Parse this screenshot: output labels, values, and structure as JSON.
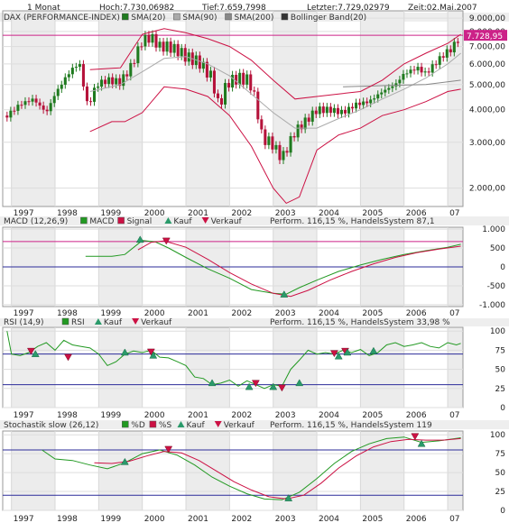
{
  "header": {
    "period": "1 Monat",
    "high": "Hoch:7.730,06982",
    "low": "Tief:7.659,7998",
    "last": "Letzter:7.729,02979",
    "time": "Zeit:02.Mai.2007"
  },
  "years": [
    "1997",
    "1998",
    "1999",
    "2000",
    "2001",
    "2002",
    "2003",
    "2004",
    "2005",
    "2006",
    "07"
  ],
  "colors": {
    "price_up": "#1f7a1f",
    "price_down": "#b5123a",
    "sma20": "#aaaaaa",
    "sma90": "#888888",
    "sma200": "#333333",
    "bollinger": "#cc1144",
    "macd": "#229922",
    "signal": "#cc1144",
    "buy": "#2a9a6a",
    "sell": "#cc1144",
    "ref_line": "#cc2288",
    "level_line": "#2b2b9a"
  },
  "chart_data": [
    {
      "type": "line",
      "id": "price",
      "legend": [
        "DAX (PERFORMANCE-INDEX)",
        "SMA(20)",
        "SMA(90)",
        "SMA(200)",
        "Bollinger Band(20)"
      ],
      "y_scale": "log",
      "ylim": [
        1700,
        9600
      ],
      "y_ticks": [
        "9.000,00",
        "8.000,00",
        "7.000,00",
        "6.000,00",
        "5.000,00",
        "4.000,00",
        "3.000,00",
        "2.000,00"
      ],
      "y_tick_values": [
        9000,
        8000,
        7000,
        6000,
        5000,
        4000,
        3000,
        2000
      ],
      "last_label": "7.728,95",
      "reference_value": 7730,
      "x_range": [
        1996.8,
        2007.35
      ],
      "series": [
        {
          "name": "DAX (PERFORMANCE-INDEX)",
          "x": [
            1996.9,
            1997.2,
            1997.5,
            1997.8,
            1998.0,
            1998.3,
            1998.55,
            1998.75,
            1998.95,
            1999.2,
            1999.5,
            1999.75,
            2000.0,
            2000.2,
            2000.4,
            2000.6,
            2000.85,
            2001.0,
            2001.3,
            2001.6,
            2001.75,
            2001.95,
            2002.2,
            2002.45,
            2002.6,
            2002.75,
            2002.95,
            2003.2,
            2003.5,
            2003.8,
            2004.0,
            2004.3,
            2004.6,
            2004.9,
            2005.2,
            2005.5,
            2005.8,
            2006.0,
            2006.3,
            2006.5,
            2006.7,
            2006.9,
            2007.1,
            2007.3
          ],
          "values": [
            3800,
            4200,
            4400,
            3900,
            4600,
            5500,
            6100,
            4100,
            5000,
            5200,
            5100,
            5900,
            7400,
            7600,
            7000,
            7000,
            6700,
            6400,
            6100,
            5300,
            4100,
            5100,
            5300,
            5200,
            4300,
            3100,
            3000,
            2600,
            3300,
            3700,
            4000,
            4000,
            3900,
            4200,
            4300,
            4700,
            5000,
            5500,
            5800,
            5500,
            6000,
            6500,
            6900,
            7730
          ]
        },
        {
          "name": "SMA(20)",
          "x": [
            1998.8,
            1999.5,
            2000.0,
            2000.5,
            2001.0,
            2001.5,
            2002.0,
            2002.5,
            2003.0,
            2003.5,
            2004.0,
            2004.5,
            2005.0,
            2005.5,
            2006.0,
            2006.5,
            2007.0,
            2007.3
          ],
          "values": [
            4700,
            5000,
            5600,
            6300,
            6400,
            6000,
            5400,
            4600,
            3900,
            3400,
            3400,
            3700,
            4000,
            4400,
            4800,
            5300,
            6000,
            6600
          ]
        },
        {
          "name": "SMA(90)",
          "x": [
            2004.6,
            2005.5,
            2006.5,
            2007.3
          ],
          "values": [
            4900,
            4950,
            5000,
            5200
          ]
        },
        {
          "name": "Bollinger Band(20) upper",
          "x": [
            1998.8,
            1999.5,
            2000.0,
            2000.5,
            2001.0,
            2001.5,
            2002.0,
            2002.5,
            2003.0,
            2003.5,
            2004.0,
            2004.5,
            2005.0,
            2005.5,
            2006.0,
            2006.5,
            2007.0,
            2007.3
          ],
          "values": [
            5700,
            5800,
            7800,
            8200,
            7900,
            7500,
            7000,
            6200,
            5200,
            4400,
            4500,
            4600,
            4700,
            5200,
            6000,
            6600,
            7200,
            7800
          ]
        },
        {
          "name": "Bollinger Band(20) lower",
          "x": [
            1998.8,
            1999.3,
            1999.6,
            2000.0,
            2000.5,
            2001.0,
            2001.5,
            2002.0,
            2002.5,
            2003.0,
            2003.3,
            2003.6,
            2004.0,
            2004.5,
            2005.0,
            2005.5,
            2006.0,
            2006.5,
            2007.0,
            2007.3
          ],
          "values": [
            3300,
            3600,
            3600,
            3900,
            4900,
            4800,
            4500,
            3800,
            2900,
            2000,
            1750,
            1850,
            2800,
            3200,
            3400,
            3800,
            4000,
            4300,
            4700,
            4800
          ]
        }
      ]
    },
    {
      "type": "line",
      "id": "macd",
      "legend": [
        "MACD (12,26,9)",
        "MACD",
        "Signal",
        "Kauf",
        "Verkauf"
      ],
      "performance": "Perform. 116,15 %, HandelsSystem 87,1",
      "ylim": [
        -1050,
        1050
      ],
      "y_ticks": [
        "1.000",
        "500",
        "0",
        "-500",
        "-1.000"
      ],
      "y_tick_values": [
        1000,
        500,
        0,
        -500,
        -1000
      ],
      "reference_value": 670,
      "zero_line": 0,
      "series": [
        {
          "name": "MACD",
          "x": [
            1998.7,
            1999.3,
            1999.6,
            2000.0,
            2000.3,
            2000.6,
            2001.0,
            2001.5,
            2002.0,
            2002.5,
            2003.0,
            2003.3,
            2003.6,
            2004.0,
            2004.5,
            2005.0,
            2005.5,
            2006.0,
            2006.5,
            2007.0,
            2007.3
          ],
          "values": [
            280,
            280,
            330,
            700,
            660,
            500,
            250,
            -50,
            -300,
            -600,
            -700,
            -720,
            -550,
            -350,
            -120,
            50,
            200,
            330,
            430,
            520,
            600
          ]
        },
        {
          "name": "Signal",
          "x": [
            1999.9,
            2000.2,
            2000.5,
            2001.0,
            2001.5,
            2002.0,
            2002.5,
            2003.0,
            2003.4,
            2003.8,
            2004.3,
            2004.8,
            2005.3,
            2005.8,
            2006.3,
            2006.8,
            2007.3
          ],
          "values": [
            450,
            650,
            690,
            520,
            200,
            -150,
            -450,
            -700,
            -780,
            -620,
            -350,
            -120,
            80,
            250,
            380,
            470,
            550
          ]
        }
      ],
      "markers": [
        {
          "kind": "Kauf",
          "x": 1999.95,
          "value": 720
        },
        {
          "kind": "Verkauf",
          "x": 2000.55,
          "value": 670
        },
        {
          "kind": "Kauf",
          "x": 2003.25,
          "value": -730
        }
      ]
    },
    {
      "type": "line",
      "id": "rsi",
      "legend": [
        "RSI (14,9)",
        "RSI",
        "Kauf",
        "Verkauf"
      ],
      "performance": "Perform. 116,15 %, HandelsSystem 33,98 %",
      "ylim": [
        0,
        105
      ],
      "y_ticks": [
        "100",
        "75",
        "50",
        "25",
        "0"
      ],
      "y_tick_values": [
        100,
        75,
        50,
        25,
        0
      ],
      "levels": [
        70,
        30
      ],
      "series": [
        {
          "name": "RSI",
          "x": [
            1996.9,
            1997.0,
            1997.2,
            1997.4,
            1997.6,
            1997.8,
            1998.0,
            1998.2,
            1998.4,
            1998.6,
            1998.8,
            1999.0,
            1999.2,
            1999.4,
            1999.6,
            1999.8,
            2000.0,
            2000.2,
            2000.4,
            2000.6,
            2000.8,
            2001.0,
            2001.2,
            2001.4,
            2001.6,
            2001.8,
            2002.0,
            2002.2,
            2002.4,
            2002.6,
            2002.8,
            2003.0,
            2003.2,
            2003.4,
            2003.6,
            2003.8,
            2004.0,
            2004.2,
            2004.4,
            2004.6,
            2004.8,
            2005.0,
            2005.2,
            2005.4,
            2005.6,
            2005.8,
            2006.0,
            2006.2,
            2006.4,
            2006.6,
            2006.8,
            2007.0,
            2007.2,
            2007.3
          ],
          "values": [
            100,
            70,
            68,
            72,
            80,
            85,
            75,
            88,
            82,
            80,
            78,
            70,
            55,
            60,
            70,
            74,
            72,
            75,
            66,
            65,
            60,
            55,
            40,
            38,
            30,
            32,
            36,
            28,
            35,
            30,
            25,
            30,
            28,
            50,
            62,
            75,
            70,
            72,
            70,
            75,
            72,
            76,
            68,
            72,
            82,
            85,
            80,
            82,
            85,
            80,
            78,
            85,
            82,
            84
          ]
        }
      ],
      "markers": [
        {
          "kind": "Verkauf",
          "x": 1997.45,
          "value": 73
        },
        {
          "kind": "Kauf",
          "x": 1997.55,
          "value": 70
        },
        {
          "kind": "Verkauf",
          "x": 1998.3,
          "value": 65
        },
        {
          "kind": "Kauf",
          "x": 1999.6,
          "value": 72
        },
        {
          "kind": "Verkauf",
          "x": 2000.2,
          "value": 72
        },
        {
          "kind": "Kauf",
          "x": 2000.25,
          "value": 68
        },
        {
          "kind": "Kauf",
          "x": 2001.6,
          "value": 32
        },
        {
          "kind": "Kauf",
          "x": 2002.45,
          "value": 27
        },
        {
          "kind": "Verkauf",
          "x": 2002.6,
          "value": 31
        },
        {
          "kind": "Kauf",
          "x": 2003.0,
          "value": 27
        },
        {
          "kind": "Verkauf",
          "x": 2003.2,
          "value": 25
        },
        {
          "kind": "Kauf",
          "x": 2003.6,
          "value": 32
        },
        {
          "kind": "Verkauf",
          "x": 2004.4,
          "value": 70
        },
        {
          "kind": "Kauf",
          "x": 2004.5,
          "value": 67
        },
        {
          "kind": "Verkauf",
          "x": 2004.65,
          "value": 73
        },
        {
          "kind": "Kauf",
          "x": 2004.7,
          "value": 72
        },
        {
          "kind": "Kauf",
          "x": 2005.3,
          "value": 74
        }
      ]
    },
    {
      "type": "line",
      "id": "stochastic",
      "legend": [
        "Stochastik slow (26,12)",
        "%D",
        "%S",
        "Kauf",
        "Verkauf"
      ],
      "performance": "Perform. 116,15 %, HandelsSystem 119",
      "ylim": [
        0,
        105
      ],
      "y_ticks": [
        "100",
        "75",
        "50",
        "25",
        "0"
      ],
      "y_tick_values": [
        100,
        75,
        50,
        25,
        0
      ],
      "levels": [
        80,
        20
      ],
      "series": [
        {
          "name": "%D",
          "x": [
            1997.7,
            1998.0,
            1998.4,
            1998.8,
            1999.2,
            1999.6,
            2000.0,
            2000.4,
            2000.8,
            2001.2,
            2001.6,
            2002.0,
            2002.4,
            2002.8,
            2003.2,
            2003.6,
            2004.0,
            2004.4,
            2004.8,
            2005.2,
            2005.6,
            2006.0,
            2006.4,
            2006.8,
            2007.3
          ],
          "values": [
            80,
            68,
            66,
            60,
            55,
            63,
            75,
            80,
            73,
            60,
            44,
            32,
            22,
            15,
            14,
            24,
            42,
            62,
            78,
            88,
            95,
            97,
            90,
            92,
            96
          ]
        },
        {
          "name": "%S",
          "x": [
            1998.9,
            1999.3,
            1999.7,
            2000.1,
            2000.5,
            2000.9,
            2001.3,
            2001.7,
            2002.1,
            2002.5,
            2002.9,
            2003.3,
            2003.7,
            2004.1,
            2004.5,
            2004.9,
            2005.3,
            2005.7,
            2006.1,
            2006.5,
            2006.9,
            2007.3
          ],
          "values": [
            63,
            62,
            65,
            72,
            78,
            76,
            66,
            52,
            38,
            27,
            18,
            15,
            20,
            36,
            56,
            72,
            84,
            91,
            94,
            93,
            93,
            95
          ]
        }
      ],
      "markers": [
        {
          "kind": "Kauf",
          "x": 1999.6,
          "value": 64
        },
        {
          "kind": "Verkauf",
          "x": 2000.6,
          "value": 80
        },
        {
          "kind": "Kauf",
          "x": 2003.35,
          "value": 16
        },
        {
          "kind": "Verkauf",
          "x": 2006.25,
          "value": 97
        },
        {
          "kind": "Kauf",
          "x": 2006.4,
          "value": 88
        }
      ]
    }
  ]
}
